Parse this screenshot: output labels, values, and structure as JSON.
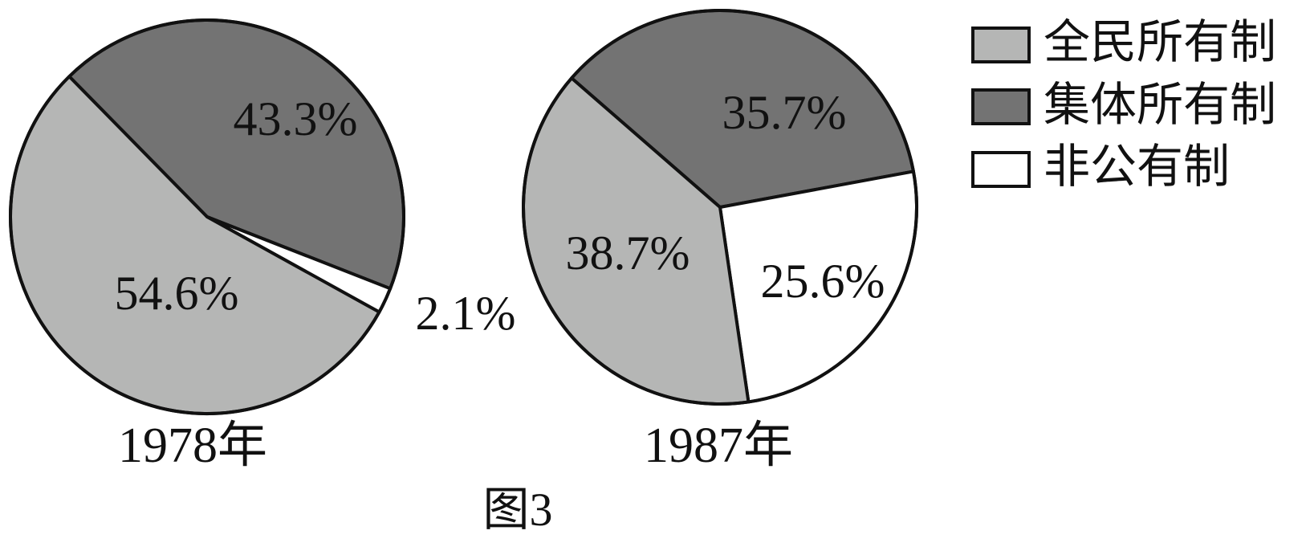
{
  "figure": {
    "caption": "图3"
  },
  "colors": {
    "全民所有制": "#b5b6b5",
    "集体所有制": "#737373",
    "非公有制": "#ffffff",
    "outline": "#111111"
  },
  "chart_data": [
    {
      "type": "pie",
      "title": "1978年",
      "slices": [
        {
          "name": "全民所有制",
          "value": 54.6,
          "label": "54.6%"
        },
        {
          "name": "集体所有制",
          "value": 43.3,
          "label": "43.3%"
        },
        {
          "name": "非公有制",
          "value": 2.1,
          "label": "2.1%"
        }
      ],
      "legend": "top-right"
    },
    {
      "type": "pie",
      "title": "1987年",
      "slices": [
        {
          "name": "全民所有制",
          "value": 38.7,
          "label": "38.7%"
        },
        {
          "name": "集体所有制",
          "value": 35.7,
          "label": "35.7%"
        },
        {
          "name": "非公有制",
          "value": 25.6,
          "label": "25.6%"
        }
      ],
      "legend": "top-right"
    }
  ],
  "legend": {
    "items": [
      {
        "name": "全民所有制",
        "label": "全民所有制"
      },
      {
        "name": "集体所有制",
        "label": "集体所有制"
      },
      {
        "name": "非公有制",
        "label": "非公有制"
      }
    ]
  }
}
